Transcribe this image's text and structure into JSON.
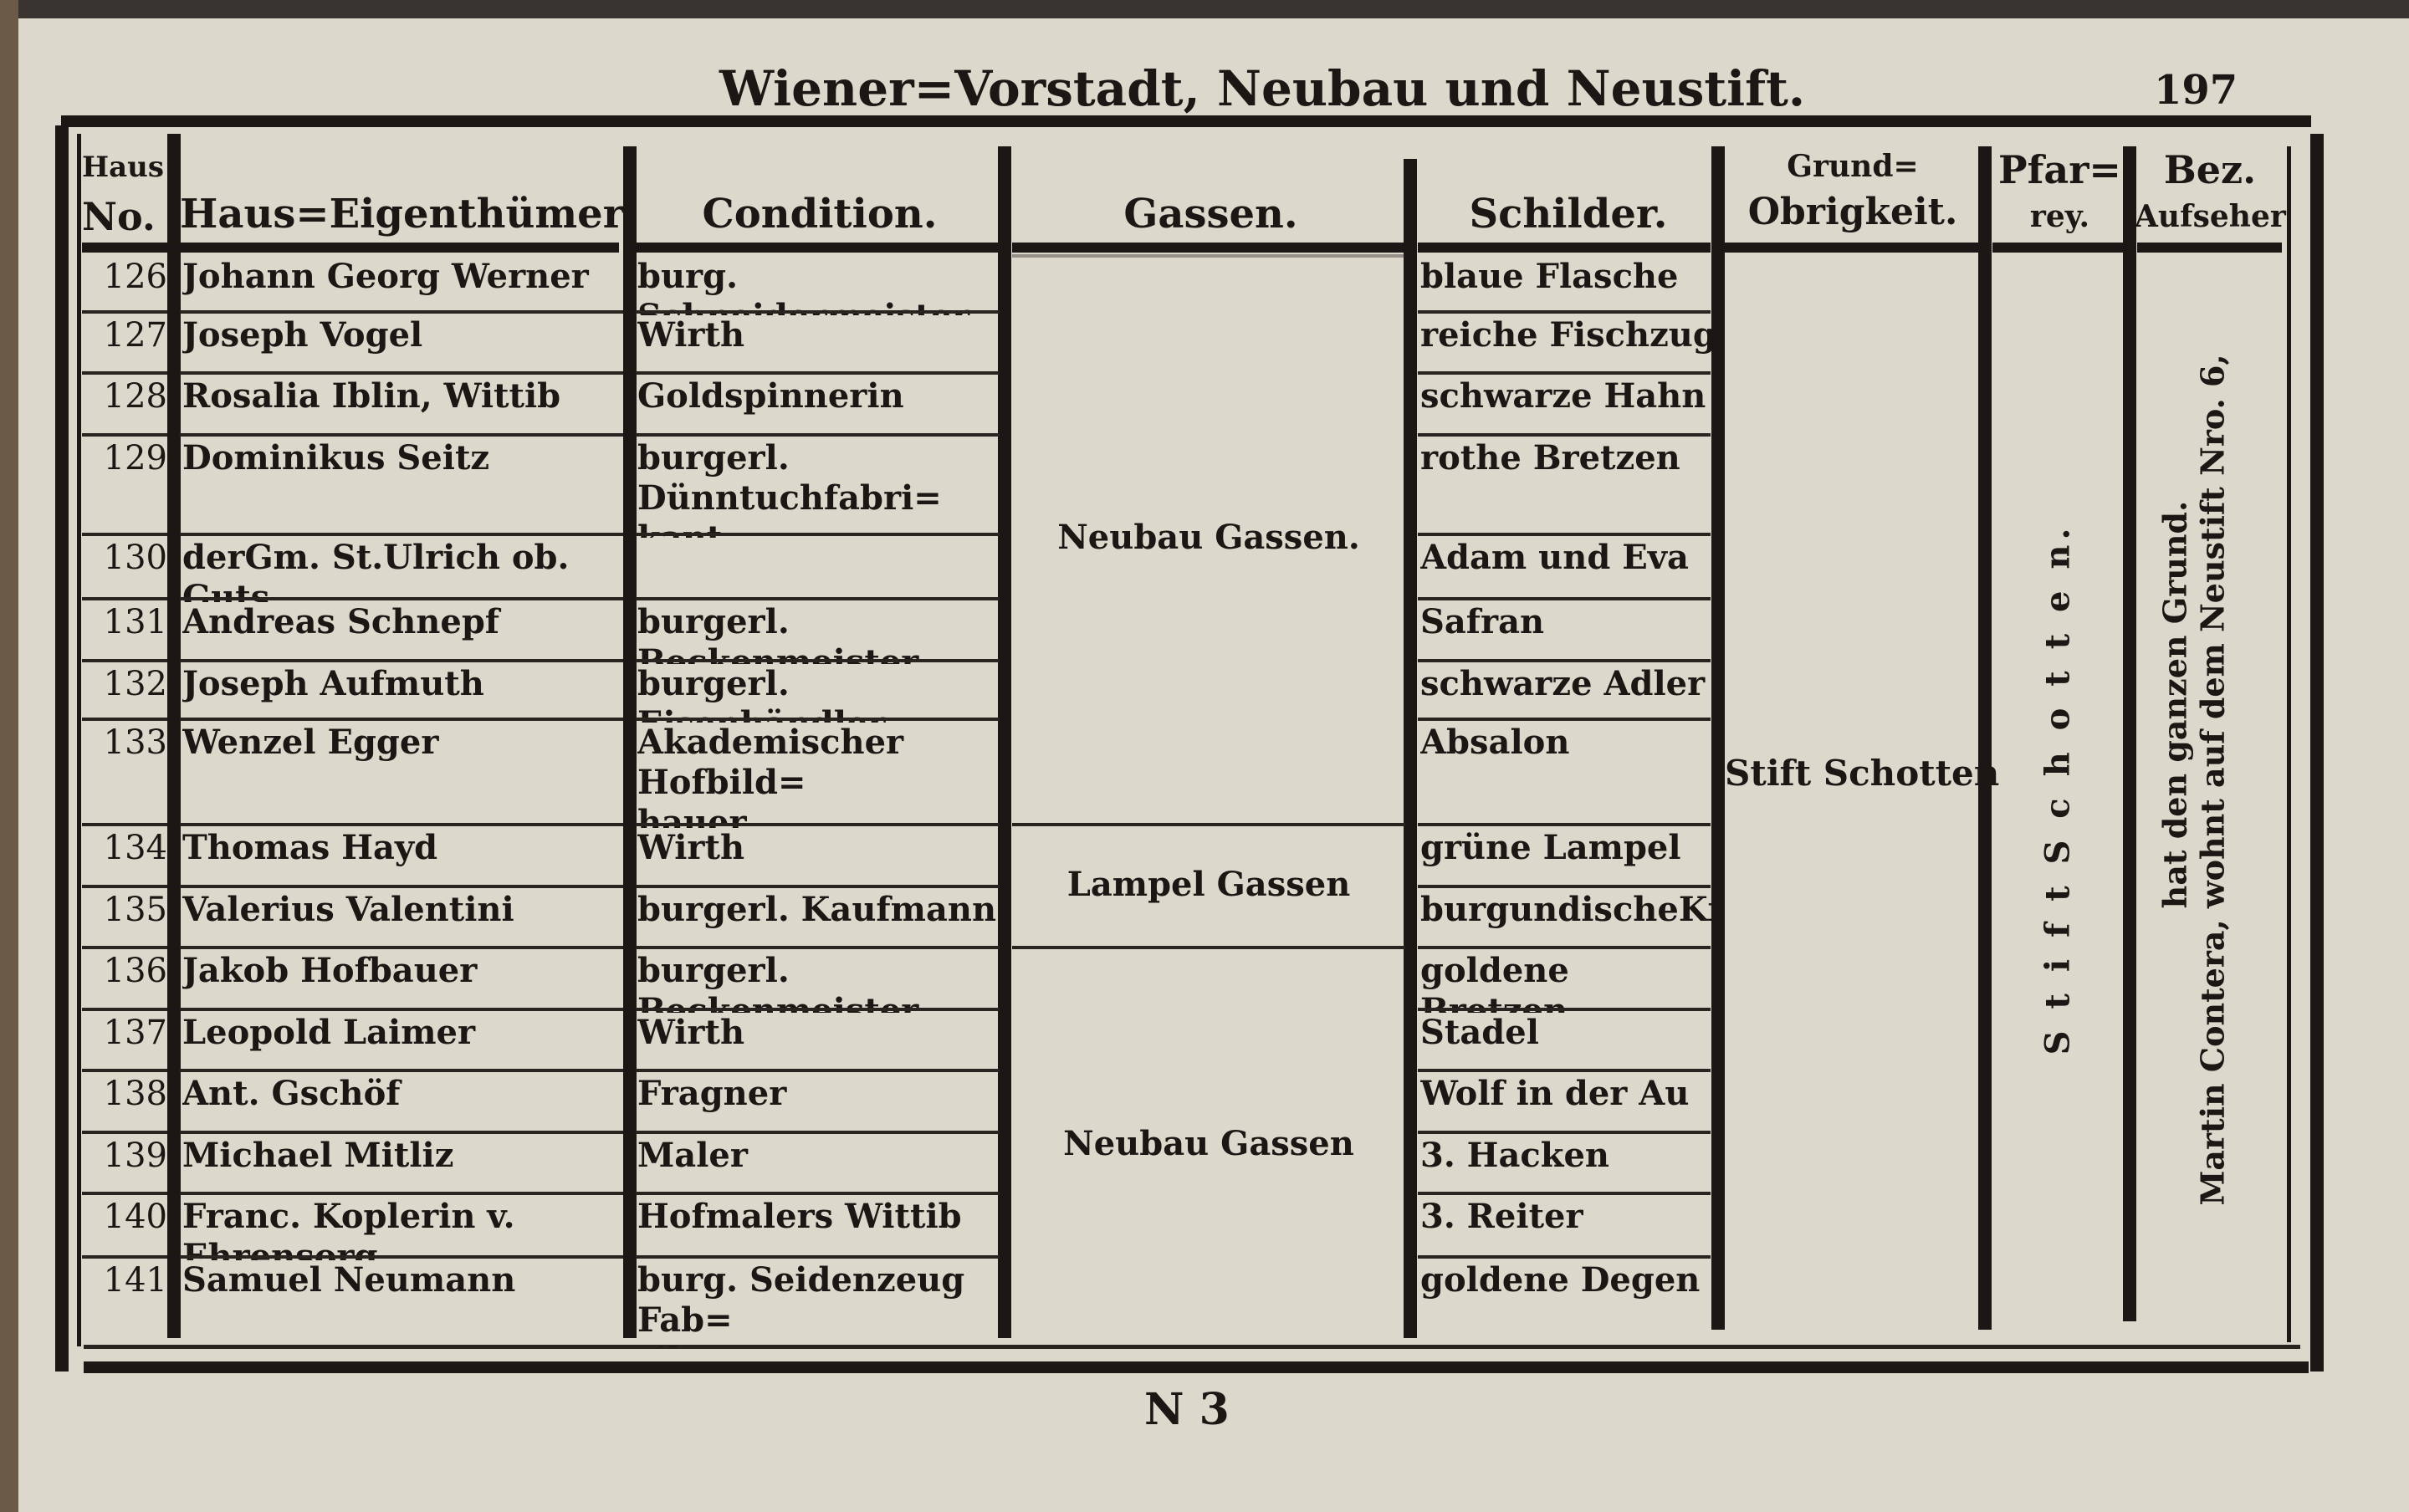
{
  "header": {
    "title": "Wiener=Vorstadt, Neubau und Neustift.",
    "page_number": "197"
  },
  "columns": {
    "no_top": "Haus",
    "no_bottom": "No.",
    "owner": "Haus=Eigenthümer.",
    "condition": "Condition.",
    "street": "Gassen.",
    "sign": "Schilder.",
    "ground_top": "Grund=",
    "ground_bottom": "Obrigkeit.",
    "parish_top": "Pfar=",
    "parish_bottom": "rey.",
    "district_top": "Bez.",
    "district_bottom": "Aufseher"
  },
  "rows": [
    {
      "no": "126",
      "owner": "Johann Georg Werner",
      "condition": "burg. Schneidermeister",
      "sign": "blaue Flasche"
    },
    {
      "no": "127",
      "owner": "Joseph Vogel",
      "condition": "Wirth",
      "sign": "reiche Fischzug"
    },
    {
      "no": "128",
      "owner": "Rosalia Iblin, Wittib",
      "condition": "Goldspinnerin",
      "sign": "schwarze Hahn"
    },
    {
      "no": "129",
      "owner": "Dominikus Seitz",
      "condition": "burgerl. Dünntuchfabri=\nkant",
      "sign": "rothe Bretzen"
    },
    {
      "no": "130",
      "owner": "derGm. St.Ulrich ob. Guts",
      "condition": "",
      "sign": "Adam und Eva"
    },
    {
      "no": "131",
      "owner": "Andreas Schnepf",
      "condition": "burgerl. Beckenmeister",
      "sign": "Safran"
    },
    {
      "no": "132",
      "owner": "Joseph Aufmuth",
      "condition": "burgerl. Eisenhändler",
      "sign": "schwarze Adler"
    },
    {
      "no": "133",
      "owner": "Wenzel Egger",
      "condition": "Akademischer Hofbild=\nhauer",
      "sign": "Absalon"
    },
    {
      "no": "134",
      "owner": "Thomas Hayd",
      "condition": "Wirth",
      "sign": "grüne Lampel"
    },
    {
      "no": "135",
      "owner": "Valerius Valentini",
      "condition": "burgerl. Kaufmann",
      "sign": "burgundischeKreuz"
    },
    {
      "no": "136",
      "owner": "Jakob Hofbauer",
      "condition": "burgerl. Beckenmeister",
      "sign": "goldene Bretzen"
    },
    {
      "no": "137",
      "owner": "Leopold Laimer",
      "condition": "Wirth",
      "sign": "Stadel"
    },
    {
      "no": "138",
      "owner": "Ant. Gschöf",
      "condition": "Fragner",
      "sign": "Wolf in der Au"
    },
    {
      "no": "139",
      "owner": "Michael Mitliz",
      "condition": "Maler",
      "sign": "3. Hacken"
    },
    {
      "no": "140",
      "owner": "Franc. Koplerin v. Ehrensorg",
      "condition": "Hofmalers Wittib",
      "sign": "3. Reiter"
    },
    {
      "no": "141",
      "owner": "Samuel Neumann",
      "condition": "burg. Seidenzeug Fab=\nrikant",
      "sign": "goldene Degen"
    }
  ],
  "streets": [
    {
      "label": "Neubau Gassen.",
      "first": "126",
      "last": "133"
    },
    {
      "label": "Lampel Gassen",
      "first": "134",
      "last": "135"
    },
    {
      "label": "Neubau Gassen",
      "first": "136",
      "last": "141"
    }
  ],
  "ground_authority": "Stift Schotten",
  "parish": "S t i f t   S c h o t t e n.",
  "district_supervisor_line1": "Martin Contera, wohnt auf dem Neustift Nro. 6,",
  "district_supervisor_line2": "hat den ganzen Grund.",
  "signature_mark": "N 3"
}
